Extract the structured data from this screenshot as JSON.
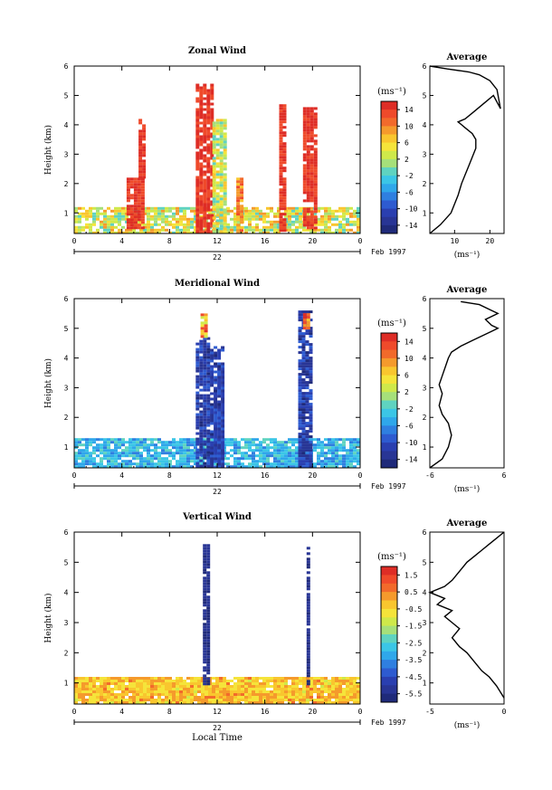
{
  "shared": {
    "xlabel": "Local Time",
    "date_number": "22",
    "month_label": "Feb 1997",
    "ylabel": "Height (km)",
    "unit_label": "(ms⁻¹)",
    "average_title": "Average",
    "average_xlabel": "(ms⁻¹)"
  },
  "chart_data": [
    {
      "type": "heatmap",
      "title": "Zonal Wind",
      "xlabel": "Local Time",
      "ylabel": "Height (km)",
      "xlim": [
        0,
        24
      ],
      "ylim": [
        0.3,
        6
      ],
      "x_ticks": [
        "0",
        "4",
        "8",
        "12",
        "16",
        "20",
        "0"
      ],
      "y_ticks": [
        "1",
        "2",
        "3",
        "4",
        "5",
        "6"
      ],
      "colorbar": {
        "label": "(ms⁻¹)",
        "ticks": [
          "14",
          "10",
          "6",
          "2",
          "-2",
          "-6",
          "-10",
          "-14"
        ],
        "min": -16,
        "max": 16
      },
      "profile": {
        "type": "line",
        "title": "Average",
        "xlabel": "(ms⁻¹)",
        "xlim": [
          3,
          24
        ],
        "x_ticks": [
          "10",
          "20"
        ],
        "x": [
          3,
          6,
          9,
          10,
          11,
          12,
          13,
          14,
          15,
          16,
          16,
          15,
          13,
          12,
          11,
          13,
          15,
          17,
          19,
          21,
          23,
          22,
          20,
          17,
          14,
          8,
          3
        ],
        "y": [
          0.3,
          0.6,
          1.0,
          1.3,
          1.6,
          2.0,
          2.3,
          2.6,
          2.9,
          3.2,
          3.5,
          3.7,
          3.9,
          4.0,
          4.1,
          4.2,
          4.4,
          4.6,
          4.8,
          5.0,
          4.55,
          5.2,
          5.5,
          5.7,
          5.8,
          5.9,
          6.0
        ]
      },
      "features": [
        {
          "x": [
            0,
            24
          ],
          "y": [
            0.3,
            1.2
          ],
          "level": "mixed, mostly 0 to 6"
        },
        {
          "x": [
            4.4,
            5.8
          ],
          "y": [
            0.5,
            2.2
          ],
          "level": "12 to 16"
        },
        {
          "x": [
            5.4,
            5.8
          ],
          "y": [
            2.2,
            4.2
          ],
          "level": "12 to 16"
        },
        {
          "x": [
            10.2,
            11.5
          ],
          "y": [
            0.3,
            5.4
          ],
          "level": "12 to 16"
        },
        {
          "x": [
            11.6,
            12.6
          ],
          "y": [
            0.4,
            4.2
          ],
          "level": "2 to 10"
        },
        {
          "x": [
            19.2,
            20.2
          ],
          "y": [
            0.5,
            4.6
          ],
          "level": "12 to 16"
        },
        {
          "x": [
            13.6,
            14.2
          ],
          "y": [
            0.3,
            2.2
          ],
          "level": "6 to 10"
        },
        {
          "x": [
            17.2,
            17.6
          ],
          "y": [
            0.4,
            4.7
          ],
          "level": "12 to 16"
        }
      ]
    },
    {
      "type": "heatmap",
      "title": "Meridional Wind",
      "xlabel": "Local Time",
      "ylabel": "Height (km)",
      "xlim": [
        0,
        24
      ],
      "ylim": [
        0.3,
        6
      ],
      "x_ticks": [
        "0",
        "4",
        "8",
        "12",
        "16",
        "20",
        "0"
      ],
      "y_ticks": [
        "1",
        "2",
        "3",
        "4",
        "5",
        "6"
      ],
      "colorbar": {
        "label": "(ms⁻¹)",
        "ticks": [
          "14",
          "10",
          "6",
          "2",
          "-2",
          "-6",
          "-10",
          "-14"
        ],
        "min": -16,
        "max": 16
      },
      "profile": {
        "type": "line",
        "title": "Average",
        "xlabel": "(ms⁻¹)",
        "xlim": [
          -6,
          6
        ],
        "x_ticks": [
          "-6",
          "6"
        ],
        "x": [
          -6,
          -4,
          -3,
          -2.5,
          -3,
          -4,
          -4.5,
          -4,
          -4.5,
          -4,
          -3.5,
          -3,
          -2.5,
          -1,
          1,
          3,
          4,
          5,
          4,
          3,
          5,
          4,
          2,
          -1
        ],
        "y": [
          0.3,
          0.6,
          1.0,
          1.4,
          1.8,
          2.1,
          2.4,
          2.8,
          3.1,
          3.4,
          3.7,
          4.0,
          4.2,
          4.4,
          4.6,
          4.8,
          4.9,
          5.0,
          5.1,
          5.3,
          5.5,
          5.6,
          5.8,
          5.9
        ]
      },
      "features": [
        {
          "x": [
            0,
            24
          ],
          "y": [
            0.3,
            1.3
          ],
          "level": "-2 to -6"
        },
        {
          "x": [
            10.2,
            11.4
          ],
          "y": [
            0.3,
            4.7
          ],
          "level": "-10 to -14"
        },
        {
          "x": [
            11.4,
            12.6
          ],
          "y": [
            0.3,
            4.4
          ],
          "level": "-6 to -10"
        },
        {
          "x": [
            18.8,
            20
          ],
          "y": [
            0.3,
            5.6
          ],
          "level": "-6 to -10"
        },
        {
          "x": [
            10.6,
            11
          ],
          "y": [
            4.7,
            5.5
          ],
          "level": "10 to 16"
        },
        {
          "x": [
            19.2,
            19.6
          ],
          "y": [
            5.0,
            5.6
          ],
          "level": "10 to 16"
        }
      ]
    },
    {
      "type": "heatmap",
      "title": "Vertical Wind",
      "xlabel": "Local Time",
      "ylabel": "Height (km)",
      "xlim": [
        0,
        24
      ],
      "ylim": [
        0.3,
        6
      ],
      "x_ticks": [
        "0",
        "4",
        "8",
        "12",
        "16",
        "20",
        "0"
      ],
      "y_ticks": [
        "1",
        "2",
        "3",
        "4",
        "5",
        "6"
      ],
      "colorbar": {
        "label": "(ms⁻¹)",
        "ticks": [
          "1.5",
          "0.5",
          "-0.5",
          "-1.5",
          "-2.5",
          "-3.5",
          "-4.5",
          "-5.5"
        ],
        "min": -6,
        "max": 2
      },
      "profile": {
        "type": "line",
        "title": "Average",
        "xlabel": "(ms⁻¹)",
        "xlim": [
          -5,
          0
        ],
        "x_ticks": [
          "-5",
          "0"
        ],
        "x": [
          0,
          -0.5,
          -1,
          -1.5,
          -2,
          -2.5,
          -3,
          -3.5,
          -3,
          -3.5,
          -4,
          -3.5,
          -4.5,
          -4,
          -5,
          -4,
          -3.5,
          -3,
          -2.5,
          -2,
          -1.5,
          -1,
          -0.5,
          0
        ],
        "y": [
          0.5,
          0.9,
          1.2,
          1.4,
          1.7,
          2.0,
          2.2,
          2.5,
          2.8,
          3.0,
          3.2,
          3.4,
          3.6,
          3.8,
          4.0,
          4.2,
          4.4,
          4.7,
          5.0,
          5.2,
          5.4,
          5.6,
          5.8,
          6.0
        ]
      },
      "features": [
        {
          "x": [
            0,
            24
          ],
          "y": [
            0.3,
            1.2
          ],
          "level": "0.5 to 1.5"
        },
        {
          "x": [
            10.8,
            11.2
          ],
          "y": [
            1.0,
            5.6
          ],
          "level": "-5.5"
        },
        {
          "x": [
            19.5,
            19.8
          ],
          "y": [
            1.0,
            5.6
          ],
          "level": "-5.5"
        }
      ]
    }
  ]
}
